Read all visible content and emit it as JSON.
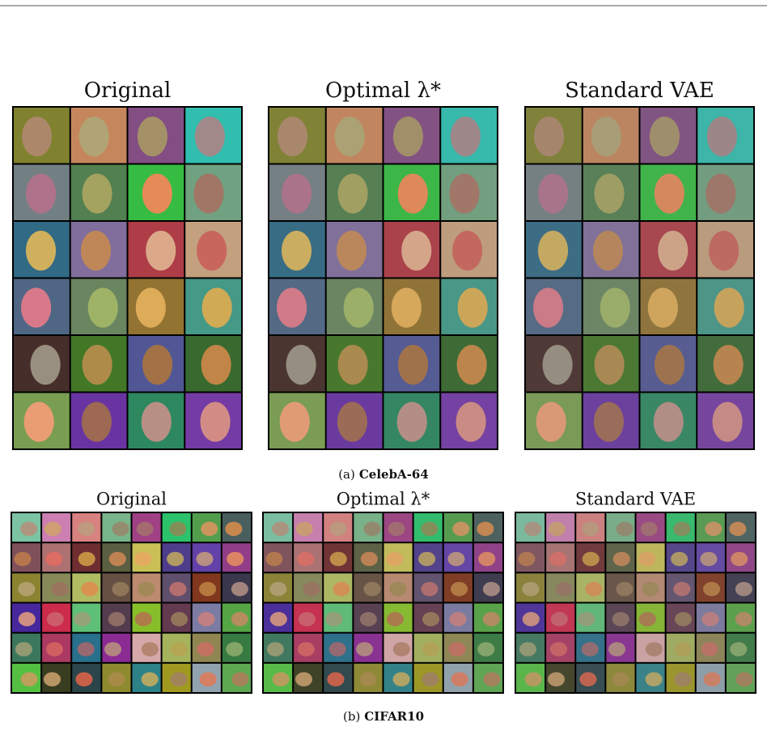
{
  "figure": {
    "panels": [
      {
        "label": "(a)",
        "name": "CelebA-64",
        "titles": [
          "Original",
          "Optimal λ*",
          "Standard VAE"
        ]
      },
      {
        "label": "(b)",
        "name": "CIFAR10",
        "titles": [
          "Original",
          "Optimal λ*",
          "Standard VAE"
        ]
      }
    ]
  }
}
